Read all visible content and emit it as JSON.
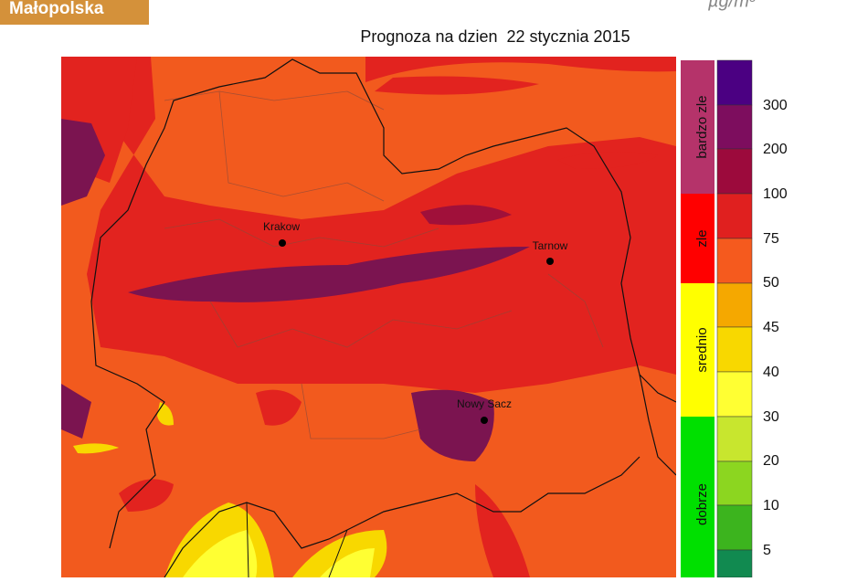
{
  "header": {
    "logo": "Małopolska",
    "unit": "µg/m³",
    "title": "Prognoza na dzien  22 stycznia 2015"
  },
  "map": {
    "cities": [
      {
        "label": "Krakow"
      },
      {
        "label": "Tarnow"
      },
      {
        "label": "Nowy Sacz"
      }
    ]
  },
  "legend": {
    "categories": [
      "bardzo zle",
      "zle",
      "srednio",
      "dobrze"
    ],
    "ticks": [
      300,
      200,
      100,
      75,
      50,
      45,
      40,
      30,
      20,
      10,
      5
    ]
  }
}
